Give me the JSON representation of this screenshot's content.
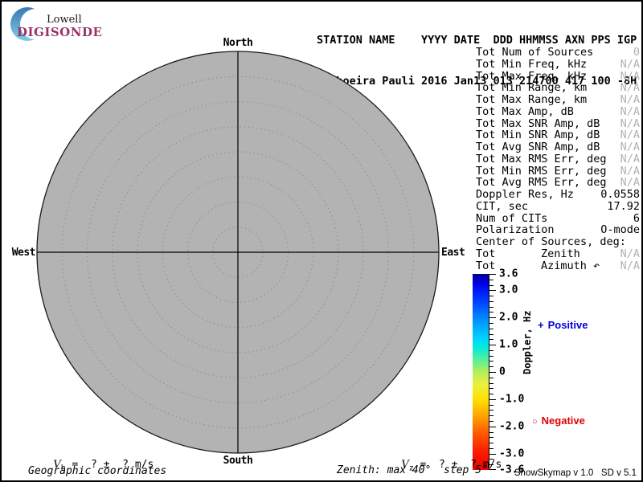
{
  "logo": {
    "line1": "Lowell",
    "line2": "DIGISONDE"
  },
  "header": {
    "line1": "STATION NAME    YYYY DATE  DDD HHMMSS AXN PPS IGP",
    "line2": "Cachoeira Pauli 2016 Jan13 013 214700 417 100 -8H"
  },
  "compass": {
    "north": "North",
    "south": "South",
    "west": "West",
    "east": "East"
  },
  "skymap": {
    "max_zenith_deg": 40,
    "step_deg": 5,
    "fill": "#b3b3b3",
    "ring_color": "#8e8e8e",
    "outline_color": "#1a1a1a",
    "axis_color": "#000000"
  },
  "stats": {
    "rows": [
      {
        "label": "Tot Num of Sources",
        "value": "0",
        "dim": true
      },
      {
        "label": "Tot Min Freq, kHz",
        "value": "N/A",
        "dim": true
      },
      {
        "label": "Tot Max Freq, kHz",
        "value": "N/A",
        "dim": true
      },
      {
        "label": "Tot Min Range, km",
        "value": "N/A",
        "dim": true
      },
      {
        "label": "Tot Max Range, km",
        "value": "N/A",
        "dim": true
      },
      {
        "label": "Tot Max Amp, dB",
        "value": "N/A",
        "dim": true
      },
      {
        "label": "Tot Max SNR Amp, dB",
        "value": "N/A",
        "dim": true
      },
      {
        "label": "Tot Min SNR Amp, dB",
        "value": "N/A",
        "dim": true
      },
      {
        "label": "Tot Avg SNR Amp, dB",
        "value": "N/A",
        "dim": true
      },
      {
        "label": "Tot Max RMS Err, deg",
        "value": "N/A",
        "dim": true
      },
      {
        "label": "Tot Min RMS Err, deg",
        "value": "N/A",
        "dim": true
      },
      {
        "label": "Tot Avg RMS Err, deg",
        "value": "N/A",
        "dim": true
      },
      {
        "label": "Doppler Res, Hz",
        "value": "0.0558",
        "dim": false
      },
      {
        "label": "CIT, sec",
        "value": "17.92",
        "dim": false
      },
      {
        "label": "Num of CITs",
        "value": "6",
        "dim": false
      },
      {
        "label": "Polarization",
        "value": "O-mode",
        "dim": false
      },
      {
        "label": "Center of Sources, deg:",
        "value": "",
        "dim": false
      },
      {
        "label": "Tot",
        "mid": "Zenith",
        "value": "N/A",
        "dim": true
      },
      {
        "label": "Tot",
        "mid": "Azimuth ↶",
        "value": "N/A",
        "dim": true
      }
    ]
  },
  "colorbar": {
    "title": "Doppler, Hz",
    "max": 3.6,
    "min": -3.6,
    "major_ticks": [
      3.6,
      3.0,
      2.0,
      1.0,
      0,
      -1.0,
      -2.0,
      -3.0,
      -3.6
    ],
    "tick_labels": [
      "3.6",
      "3.0",
      "2.0",
      "1.0",
      "0",
      "-1.0",
      "-2.0",
      "-3.0",
      "-3.6"
    ],
    "minor_step": 0.2,
    "gradient": [
      [
        0.0,
        "#00008f"
      ],
      [
        0.05,
        "#0000e8"
      ],
      [
        0.13,
        "#0038ff"
      ],
      [
        0.25,
        "#009cff"
      ],
      [
        0.33,
        "#00d4ff"
      ],
      [
        0.37,
        "#00e8e0"
      ],
      [
        0.44,
        "#58f09a"
      ],
      [
        0.5,
        "#b4ee5a"
      ],
      [
        0.57,
        "#eef03a"
      ],
      [
        0.64,
        "#ffdf00"
      ],
      [
        0.73,
        "#ffa000"
      ],
      [
        0.81,
        "#ff5c00"
      ],
      [
        0.9,
        "#fb2000"
      ],
      [
        1.0,
        "#ee0000"
      ]
    ],
    "positive_marker": "+",
    "positive_label": "Positive",
    "negative_marker": "○",
    "negative_label": "Negative"
  },
  "footer": {
    "vh": {
      "symbol": "V",
      "sub": "h",
      "rest": " =  ? ±  ? m/s"
    },
    "vz": {
      "symbol": "V",
      "sub": "z",
      "rest": " =  ? ±  ? m/s"
    },
    "coords_label": "Geographic coordinates",
    "zenith_label": "Zenith: max 40°  step 5°",
    "credit": "ShowSkymap v 1.0   SD v 5.1"
  },
  "colors": {
    "positive": "#0000e0",
    "negative": "#e00000",
    "dim": "#b2b2b2",
    "digisonde": "#993366"
  }
}
